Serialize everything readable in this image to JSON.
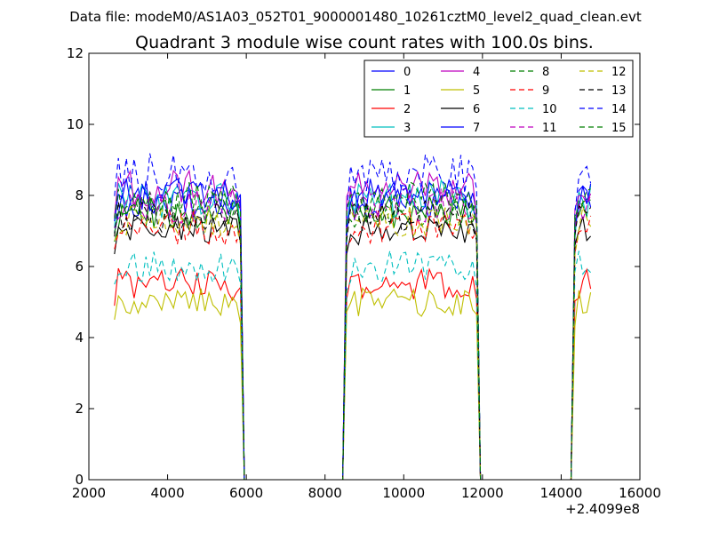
{
  "suptitle": "Data file: modeM0/AS1A03_052T01_9000001480_10261cztM0_level2_quad_clean.evt",
  "chart_data": {
    "type": "line",
    "title": "Quadrant 3 module wise count rates with 100.0s bins.",
    "xlabel": "",
    "ylabel": "",
    "x_offset_label": "+2.4099e8",
    "xlim": [
      2000,
      16000
    ],
    "ylim": [
      0,
      12
    ],
    "x_ticks": [
      2000,
      4000,
      6000,
      8000,
      10000,
      12000,
      14000,
      16000
    ],
    "x_tick_labels": [
      "2000",
      "4000",
      "6000",
      "8000",
      "10000",
      "12000",
      "14000",
      "16000"
    ],
    "y_ticks": [
      0,
      2,
      4,
      6,
      8,
      10,
      12
    ],
    "y_tick_labels": [
      "0",
      "2",
      "4",
      "6",
      "8",
      "10",
      "12"
    ],
    "bin_width": 100,
    "x_start": 2650,
    "x_end": 14750,
    "segments": [
      {
        "start": 2650,
        "end": 5850
      },
      {
        "start": 8550,
        "end": 11850
      },
      {
        "start": 14350,
        "end": 14750
      }
    ],
    "grid": false,
    "legend_position": "top-right",
    "series": [
      {
        "name": "0",
        "level": 7.8,
        "amp": 0.5,
        "color": "#0000ff",
        "dash": "solid"
      },
      {
        "name": "1",
        "level": 7.5,
        "amp": 0.5,
        "color": "#007f00",
        "dash": "solid"
      },
      {
        "name": "2",
        "level": 5.5,
        "amp": 0.45,
        "color": "#ff0000",
        "dash": "solid"
      },
      {
        "name": "3",
        "level": 7.9,
        "amp": 0.55,
        "color": "#00bfbf",
        "dash": "solid"
      },
      {
        "name": "4",
        "level": 8.2,
        "amp": 0.5,
        "color": "#bf00bf",
        "dash": "solid"
      },
      {
        "name": "5",
        "level": 5.0,
        "amp": 0.4,
        "color": "#bfbf00",
        "dash": "solid"
      },
      {
        "name": "6",
        "level": 7.0,
        "amp": 0.45,
        "color": "#000000",
        "dash": "solid"
      },
      {
        "name": "7",
        "level": 8.0,
        "amp": 0.5,
        "color": "#0000ff",
        "dash": "solid"
      },
      {
        "name": "8",
        "level": 7.6,
        "amp": 0.5,
        "color": "#007f00",
        "dash": "dashed"
      },
      {
        "name": "9",
        "level": 7.1,
        "amp": 0.5,
        "color": "#ff0000",
        "dash": "dashed"
      },
      {
        "name": "10",
        "level": 6.0,
        "amp": 0.45,
        "color": "#00bfbf",
        "dash": "dashed"
      },
      {
        "name": "11",
        "level": 7.7,
        "amp": 0.5,
        "color": "#bf00bf",
        "dash": "dashed"
      },
      {
        "name": "12",
        "level": 7.3,
        "amp": 0.45,
        "color": "#bfbf00",
        "dash": "dashed"
      },
      {
        "name": "13",
        "level": 7.4,
        "amp": 0.45,
        "color": "#000000",
        "dash": "dashed"
      },
      {
        "name": "14",
        "level": 8.6,
        "amp": 0.6,
        "color": "#0000ff",
        "dash": "dashed"
      },
      {
        "name": "15",
        "level": 7.9,
        "amp": 0.5,
        "color": "#007f00",
        "dash": "dashed"
      }
    ]
  }
}
